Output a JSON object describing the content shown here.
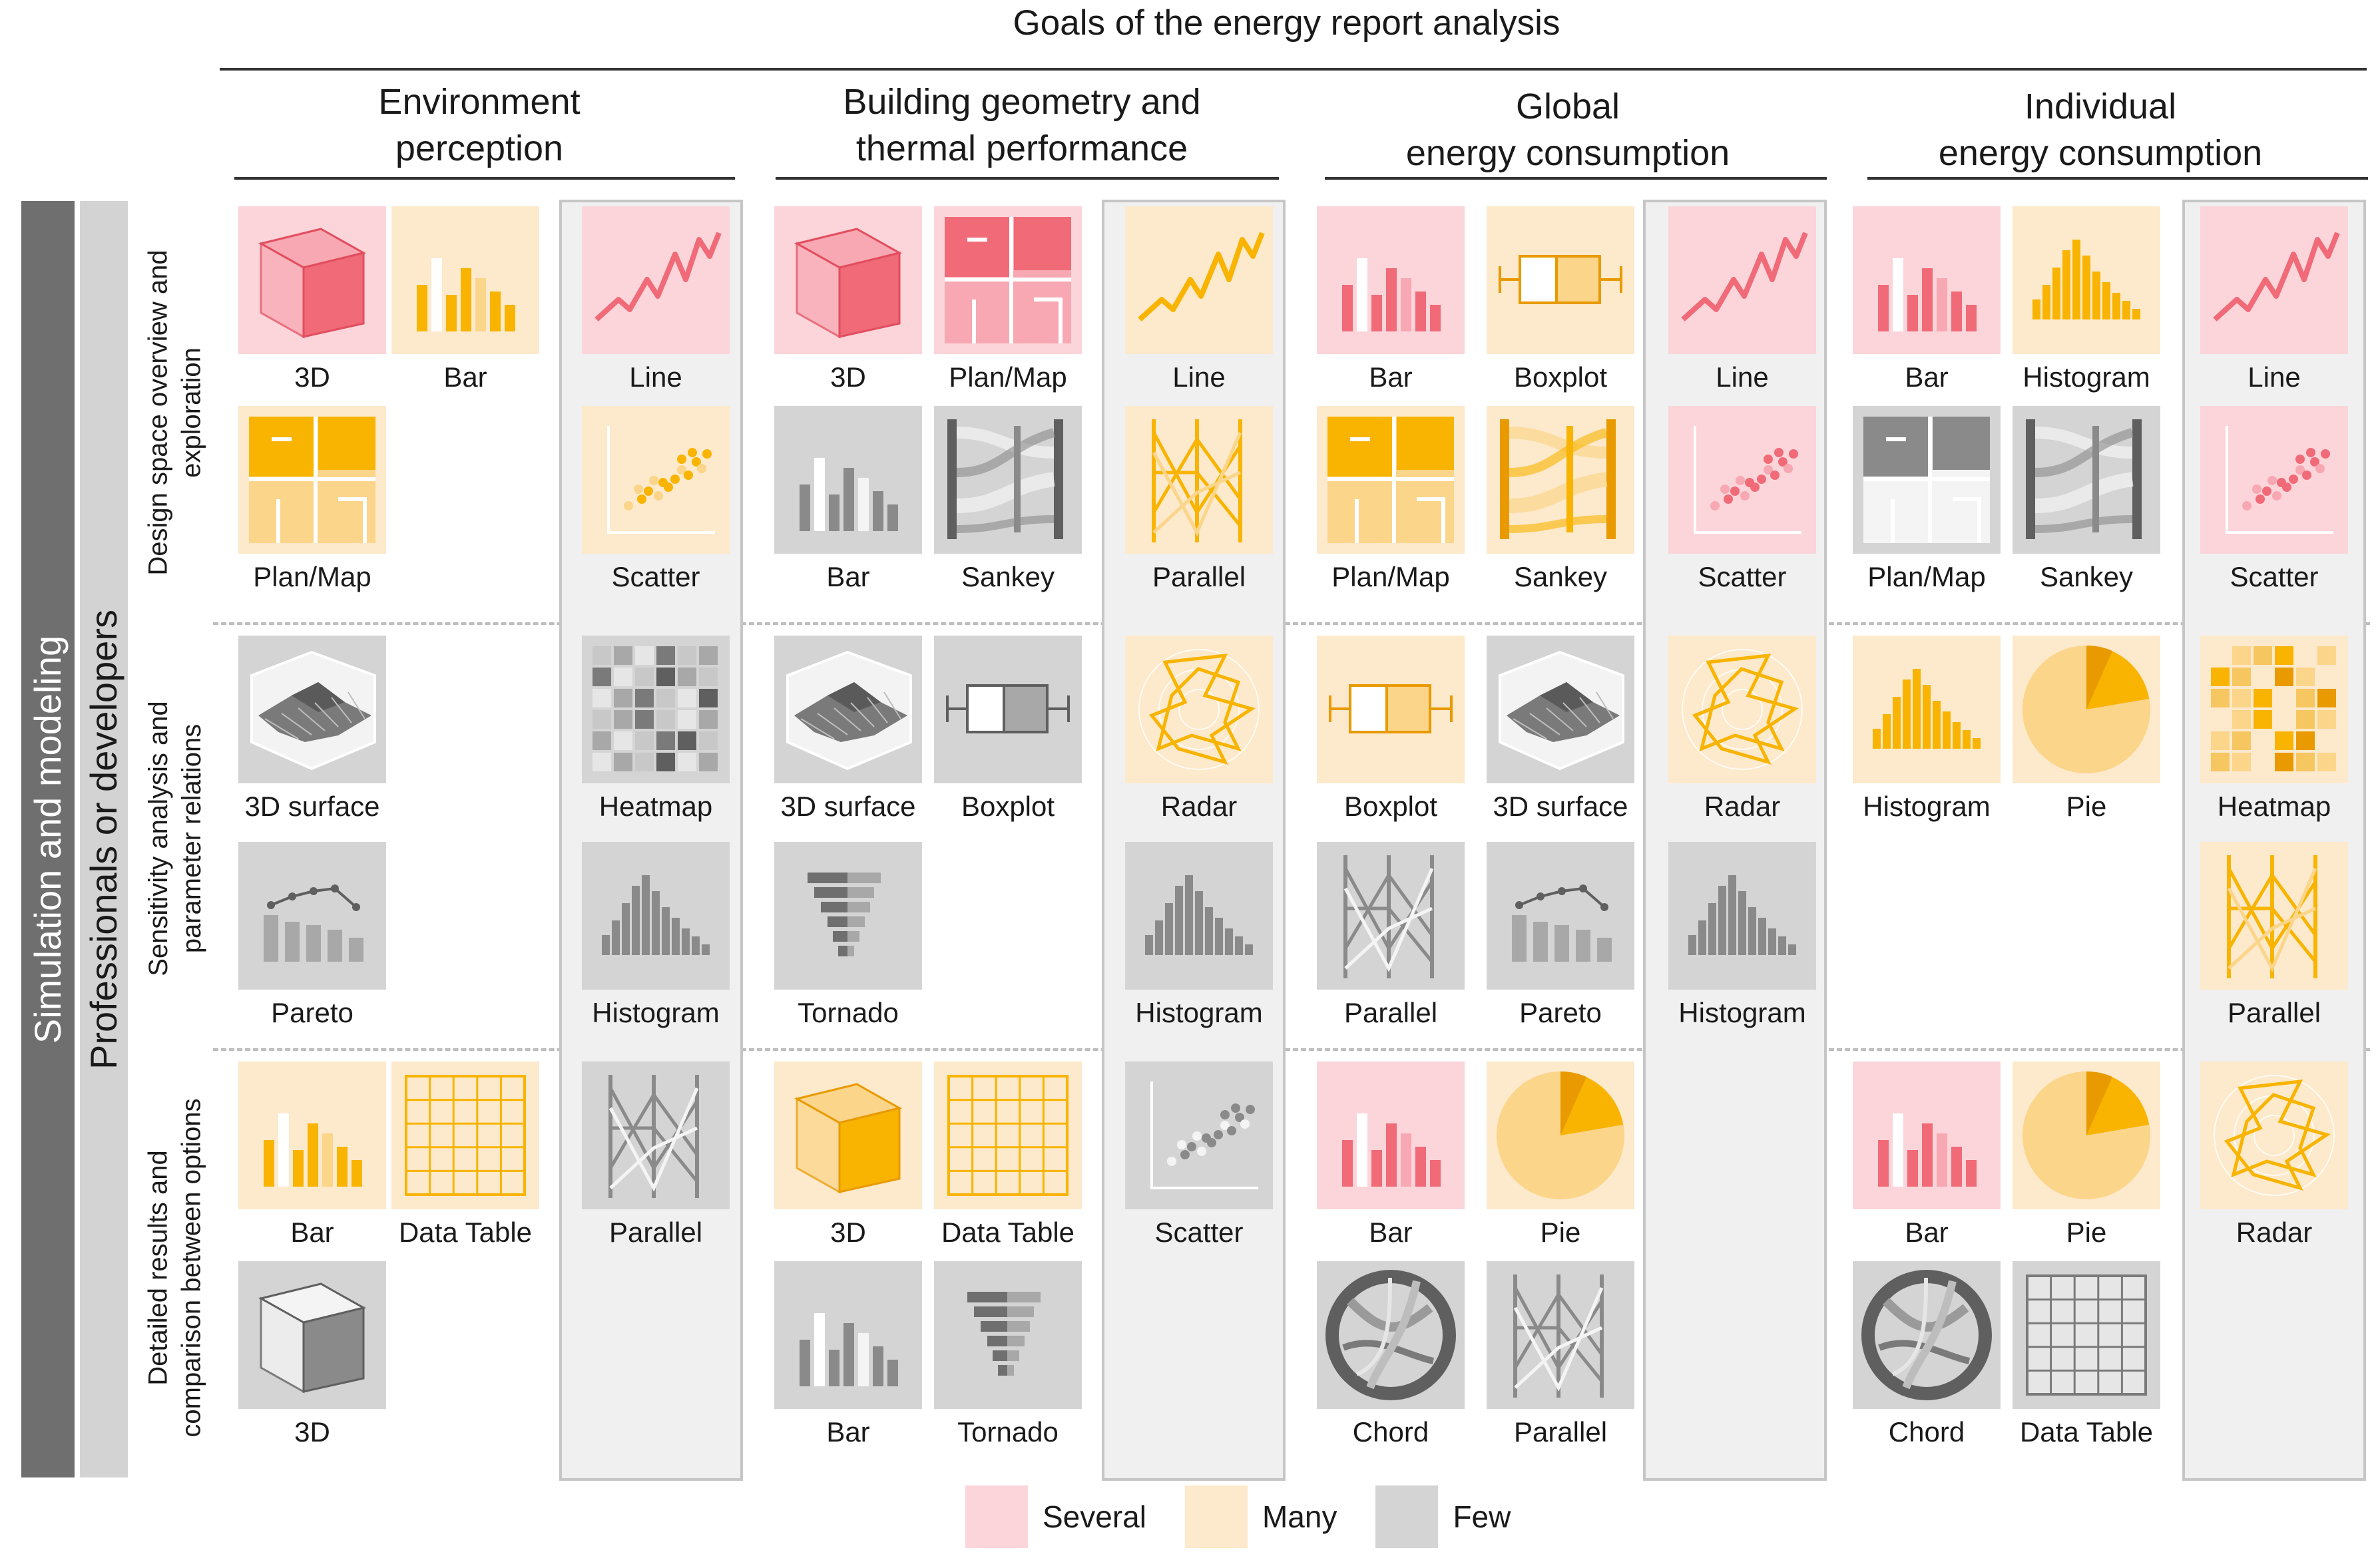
{
  "title": "Goals of the energy report analysis",
  "goals": [
    {
      "line1": "Environment",
      "line2": "perception"
    },
    {
      "line1": "Building geometry and",
      "line2": "thermal performance"
    },
    {
      "line1": "Global",
      "line2": "energy consumption"
    },
    {
      "line1": "Individual",
      "line2": "energy consumption"
    }
  ],
  "side": {
    "outer": "Simulation and modeling",
    "inner": "Professionals or developers"
  },
  "rows": [
    {
      "line1": "Design space overview and",
      "line2": "exploration"
    },
    {
      "line1": "Sensitivity analysis and",
      "line2": "parameter relations"
    },
    {
      "line1": "Detailed results and",
      "line2": "comparison between options"
    }
  ],
  "legend": [
    {
      "label": "Several",
      "color": "#fbd5da"
    },
    {
      "label": "Many",
      "color": "#fde9cb"
    },
    {
      "label": "Few",
      "color": "#d4d4d4"
    }
  ],
  "colors": {
    "several": "#fbd5da",
    "many": "#fde9cb",
    "few": "#d4d4d4",
    "red": "#f06a78",
    "orange": "#f8b400",
    "grey": "#8a8a8a"
  },
  "grid": [
    [
      [
        {
          "type": "3d",
          "cat": "several",
          "label": "3D"
        },
        {
          "type": "bar",
          "cat": "many",
          "label": "Bar"
        },
        {
          "type": "plan",
          "cat": "many",
          "label": "Plan/Map"
        }
      ],
      [
        {
          "type": "line",
          "cat": "several",
          "label": "Line"
        },
        {
          "type": "scatter",
          "cat": "many",
          "label": "Scatter"
        }
      ],
      [
        {
          "type": "3d",
          "cat": "several",
          "label": "3D"
        },
        {
          "type": "plan",
          "cat": "several",
          "label": "Plan/Map"
        },
        {
          "type": "bar",
          "cat": "few",
          "label": "Bar"
        },
        {
          "type": "sankey",
          "cat": "few",
          "label": "Sankey"
        }
      ],
      [
        {
          "type": "line",
          "cat": "many",
          "label": "Line"
        },
        {
          "type": "parallel",
          "cat": "many",
          "label": "Parallel"
        }
      ],
      [
        {
          "type": "bar",
          "cat": "several",
          "label": "Bar"
        },
        {
          "type": "boxplot",
          "cat": "many",
          "label": "Boxplot"
        },
        {
          "type": "plan",
          "cat": "many",
          "label": "Plan/Map"
        },
        {
          "type": "sankey",
          "cat": "many",
          "label": "Sankey"
        }
      ],
      [
        {
          "type": "line",
          "cat": "several",
          "label": "Line"
        },
        {
          "type": "scatter",
          "cat": "several",
          "label": "Scatter"
        }
      ],
      [
        {
          "type": "bar",
          "cat": "several",
          "label": "Bar"
        },
        {
          "type": "histogram",
          "cat": "many",
          "label": "Histogram"
        },
        {
          "type": "plan",
          "cat": "few",
          "label": "Plan/Map"
        },
        {
          "type": "sankey",
          "cat": "few",
          "label": "Sankey"
        }
      ],
      [
        {
          "type": "line",
          "cat": "several",
          "label": "Line"
        },
        {
          "type": "scatter",
          "cat": "several",
          "label": "Scatter"
        }
      ]
    ],
    [
      [
        {
          "type": "surface",
          "cat": "few",
          "label": "3D surface"
        },
        null,
        {
          "type": "pareto",
          "cat": "few",
          "label": "Pareto"
        }
      ],
      [
        {
          "type": "heatmap",
          "cat": "few",
          "label": "Heatmap"
        },
        {
          "type": "histogram",
          "cat": "few",
          "label": "Histogram"
        }
      ],
      [
        {
          "type": "surface",
          "cat": "few",
          "label": "3D surface"
        },
        {
          "type": "boxplot",
          "cat": "few",
          "label": "Boxplot"
        },
        {
          "type": "tornado",
          "cat": "few",
          "label": "Tornado"
        }
      ],
      [
        {
          "type": "radar",
          "cat": "many",
          "label": "Radar"
        },
        {
          "type": "histogram",
          "cat": "few",
          "label": "Histogram"
        }
      ],
      [
        {
          "type": "boxplot",
          "cat": "many",
          "label": "Boxplot"
        },
        {
          "type": "surface",
          "cat": "few",
          "label": "3D surface"
        },
        {
          "type": "parallel",
          "cat": "few",
          "label": "Parallel"
        },
        {
          "type": "pareto",
          "cat": "few",
          "label": "Pareto"
        }
      ],
      [
        {
          "type": "radar",
          "cat": "many",
          "label": "Radar"
        },
        {
          "type": "histogram",
          "cat": "few",
          "label": "Histogram"
        }
      ],
      [
        {
          "type": "histogram",
          "cat": "many",
          "label": "Histogram"
        },
        {
          "type": "pie",
          "cat": "many",
          "label": "Pie"
        }
      ],
      [
        {
          "type": "heatmap",
          "cat": "many",
          "label": "Heatmap"
        },
        {
          "type": "parallel",
          "cat": "many",
          "label": "Parallel"
        }
      ]
    ],
    [
      [
        {
          "type": "bar",
          "cat": "many",
          "label": "Bar"
        },
        {
          "type": "table",
          "cat": "many",
          "label": "Data Table"
        },
        {
          "type": "3d",
          "cat": "few",
          "label": "3D"
        }
      ],
      [
        {
          "type": "parallel",
          "cat": "few",
          "label": "Parallel"
        }
      ],
      [
        {
          "type": "3d",
          "cat": "many",
          "label": "3D"
        },
        {
          "type": "table",
          "cat": "many",
          "label": "Data Table"
        },
        {
          "type": "bar",
          "cat": "few",
          "label": "Bar"
        },
        {
          "type": "tornado",
          "cat": "few",
          "label": "Tornado"
        }
      ],
      [
        {
          "type": "scatter",
          "cat": "few",
          "label": "Scatter"
        }
      ],
      [
        {
          "type": "bar",
          "cat": "several",
          "label": "Bar"
        },
        {
          "type": "pie",
          "cat": "many",
          "label": "Pie"
        },
        {
          "type": "chord",
          "cat": "few",
          "label": "Chord"
        },
        {
          "type": "parallel",
          "cat": "few",
          "label": "Parallel"
        }
      ],
      [],
      [
        {
          "type": "bar",
          "cat": "several",
          "label": "Bar"
        },
        {
          "type": "pie",
          "cat": "many",
          "label": "Pie"
        },
        {
          "type": "chord",
          "cat": "few",
          "label": "Chord"
        },
        {
          "type": "table",
          "cat": "few",
          "label": "Data Table"
        }
      ],
      [
        {
          "type": "radar",
          "cat": "many",
          "label": "Radar"
        }
      ]
    ]
  ]
}
